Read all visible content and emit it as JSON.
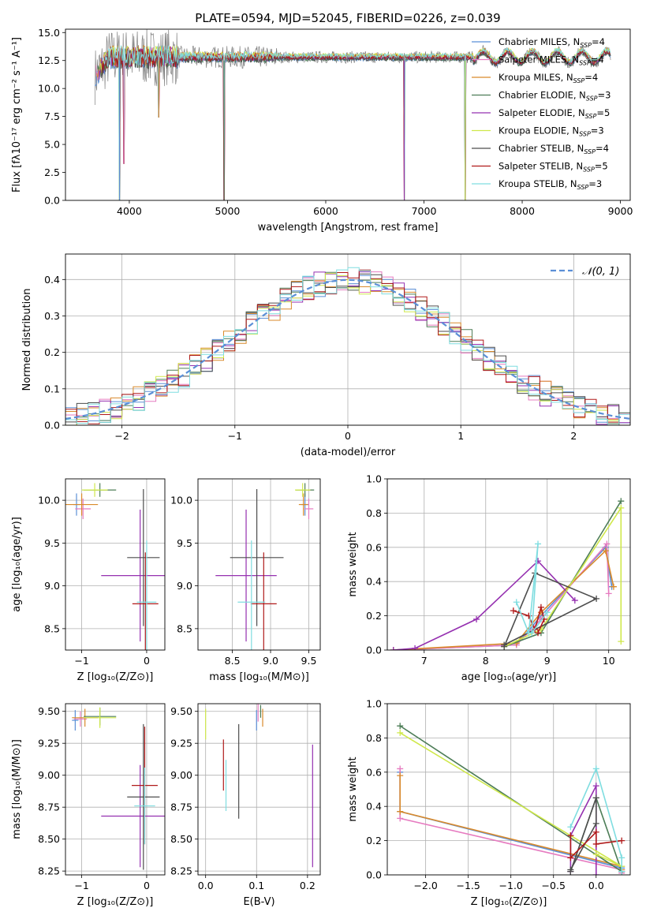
{
  "colors": {
    "chabrier_miles": "#5b8fd6",
    "salpeter_miles": "#e67bc0",
    "kroupa_miles": "#d98a2b",
    "chabrier_elodie": "#4d7d57",
    "salpeter_elodie": "#9530b0",
    "kroupa_elodie": "#cfe84a",
    "chabrier_stelib": "#4d4d4d",
    "salpeter_stelib": "#b01a1a",
    "kroupa_stelib": "#7fdde0",
    "normal_curve": "#5b8fd6",
    "spectrum_gray": "#808080"
  },
  "chart_data": [
    {
      "id": "spectrum",
      "type": "line",
      "title": "PLATE=0594, MJD=52045, FIBERID=0226, z=0.039",
      "xlabel": "wavelength [Angstrom, rest frame]",
      "ylabel": "Flux [fλ10⁻¹⁷ erg cm⁻² s⁻¹ A⁻¹]",
      "xlim": [
        3350,
        9100
      ],
      "ylim": [
        0,
        15.3
      ],
      "xticks": [
        "4000",
        "5000",
        "6000",
        "7000",
        "8000",
        "9000"
      ],
      "yticks": [
        "0.0",
        "2.5",
        "5.0",
        "7.5",
        "10.0",
        "12.5",
        "15.0"
      ],
      "grid": false,
      "legend_position": "top-right",
      "series": [
        {
          "name": "Chabrier MILES, N",
          "sub": "SSP",
          "suffix": "=4",
          "color": "#5b8fd6"
        },
        {
          "name": "Salpeter MILES, N",
          "sub": "SSP",
          "suffix": "=4",
          "color": "#e67bc0"
        },
        {
          "name": "Kroupa MILES, N",
          "sub": "SSP",
          "suffix": "=4",
          "color": "#d98a2b"
        },
        {
          "name": "Chabrier ELODIE, N",
          "sub": "SSP",
          "suffix": "=3",
          "color": "#4d7d57"
        },
        {
          "name": "Salpeter ELODIE, N",
          "sub": "SSP",
          "suffix": "=5",
          "color": "#9530b0"
        },
        {
          "name": "Kroupa ELODIE, N",
          "sub": "SSP",
          "suffix": "=3",
          "color": "#cfe84a"
        },
        {
          "name": "Chabrier STELIB, N",
          "sub": "SSP",
          "suffix": "=4",
          "color": "#4d4d4d"
        },
        {
          "name": "Salpeter STELIB, N",
          "sub": "SSP",
          "suffix": "=5",
          "color": "#b01a1a"
        },
        {
          "name": "Kroupa STELIB, N",
          "sub": "SSP",
          "suffix": "=3",
          "color": "#7fdde0"
        }
      ],
      "continuum_level": 12.8,
      "dips": [
        [
          3900,
          0
        ],
        [
          3945,
          3.3
        ],
        [
          4300,
          7.4
        ],
        [
          4965,
          0
        ],
        [
          6800,
          0
        ],
        [
          7420,
          0
        ],
        [
          8970,
          12.5
        ]
      ]
    },
    {
      "id": "residuals",
      "type": "bar",
      "xlabel": "(data-model)/error",
      "ylabel": "Normed distribution",
      "xlim": [
        -2.5,
        2.5
      ],
      "ylim": [
        0,
        0.47
      ],
      "xticks": [
        -2,
        -1,
        0,
        1,
        2
      ],
      "xtick_labels": [
        "−2",
        "−1",
        "0",
        "1",
        "2"
      ],
      "yticks": [
        "0.0",
        "0.1",
        "0.2",
        "0.3",
        "0.4"
      ],
      "grid": true,
      "legend_position": "top-right",
      "legend_label": "𝒩(0, 1)",
      "bin_width": 0.1,
      "normal": {
        "mean": 0,
        "sigma": 1
      }
    },
    {
      "id": "age-vs-z",
      "type": "scatter",
      "xlabel": "Z [log₁₀(Z/Z⊙)]",
      "ylabel": "age  [log₁₀(age/yr)]",
      "xlim": [
        -1.25,
        0.28
      ],
      "ylim": [
        8.25,
        10.25
      ],
      "xticks": [
        "−1",
        "0"
      ],
      "yticks": [
        "8.5",
        "9.0",
        "9.5",
        "10.0"
      ],
      "grid": true,
      "points": [
        {
          "x": -1.08,
          "y": 9.95,
          "xerr": 0.05,
          "yerr": 0.13,
          "color": "#5b8fd6"
        },
        {
          "x": -0.98,
          "y": 9.9,
          "xerr": 0.12,
          "yerr": 0.12,
          "color": "#e67bc0"
        },
        {
          "x": -1.0,
          "y": 9.95,
          "xerr": 0.25,
          "yerr": 0.13,
          "color": "#d98a2b"
        },
        {
          "x": -0.72,
          "y": 10.12,
          "xerr": 0.25,
          "yerr": 0.08,
          "color": "#4d7d57"
        },
        {
          "x": -0.1,
          "y": 9.12,
          "xerr": 0.6,
          "yerr": 0.77,
          "color": "#9530b0"
        },
        {
          "x": -0.8,
          "y": 10.12,
          "xerr": 0.2,
          "yerr": 0.08,
          "color": "#cfe84a"
        },
        {
          "x": -0.05,
          "y": 9.33,
          "xerr": 0.25,
          "yerr": 0.8,
          "color": "#4d4d4d"
        },
        {
          "x": -0.02,
          "y": 8.79,
          "xerr": 0.2,
          "yerr": 0.6,
          "color": "#b01a1a"
        },
        {
          "x": 0.0,
          "y": 8.81,
          "xerr": 0.15,
          "yerr": 0.72,
          "color": "#7fdde0"
        }
      ]
    },
    {
      "id": "age-vs-mass",
      "type": "scatter",
      "xlabel": "mass [log₁₀(M/M⊙)]",
      "xlim": [
        8.05,
        9.65
      ],
      "ylim": [
        8.25,
        10.25
      ],
      "xticks": [
        "8.5",
        "9.0",
        "9.5"
      ],
      "yticks": [
        "8.5",
        "9.0",
        "9.5",
        "10.0"
      ],
      "grid": true,
      "points": [
        {
          "x": 9.45,
          "y": 9.95,
          "xerr": 0.05,
          "yerr": 0.13,
          "color": "#5b8fd6"
        },
        {
          "x": 9.5,
          "y": 9.9,
          "xerr": 0.06,
          "yerr": 0.12,
          "color": "#e67bc0"
        },
        {
          "x": 9.43,
          "y": 9.95,
          "xerr": 0.06,
          "yerr": 0.13,
          "color": "#d98a2b"
        },
        {
          "x": 9.45,
          "y": 10.12,
          "xerr": 0.12,
          "yerr": 0.08,
          "color": "#4d7d57"
        },
        {
          "x": 8.68,
          "y": 9.12,
          "xerr": 0.4,
          "yerr": 0.77,
          "color": "#9530b0"
        },
        {
          "x": 9.42,
          "y": 10.12,
          "xerr": 0.1,
          "yerr": 0.08,
          "color": "#cfe84a"
        },
        {
          "x": 8.82,
          "y": 9.33,
          "xerr": 0.35,
          "yerr": 0.8,
          "color": "#4d4d4d"
        },
        {
          "x": 8.91,
          "y": 8.79,
          "xerr": 0.17,
          "yerr": 0.6,
          "color": "#b01a1a"
        },
        {
          "x": 8.75,
          "y": 8.81,
          "xerr": 0.18,
          "yerr": 0.72,
          "color": "#7fdde0"
        }
      ]
    },
    {
      "id": "mass-weight-vs-age",
      "type": "line",
      "xlabel": "age  [log₁₀(age/yr)]",
      "ylabel": "mass weight",
      "xlim": [
        6.4,
        10.35
      ],
      "ylim": [
        0,
        1.0
      ],
      "xticks": [
        "7",
        "8",
        "9",
        "10"
      ],
      "yticks": [
        "0.0",
        "0.2",
        "0.4",
        "0.6",
        "0.8",
        "1.0"
      ],
      "grid": true,
      "series": [
        {
          "color": "#5b8fd6",
          "x": [
            6.5,
            8.5,
            8.9,
            9.95,
            10.05
          ],
          "y": [
            0.0,
            0.03,
            0.2,
            0.6,
            0.37
          ]
        },
        {
          "color": "#e67bc0",
          "x": [
            6.5,
            8.5,
            8.9,
            9.97,
            10.0
          ],
          "y": [
            0.0,
            0.03,
            0.18,
            0.62,
            0.33
          ]
        },
        {
          "color": "#d98a2b",
          "x": [
            6.5,
            8.5,
            8.9,
            9.95,
            10.08
          ],
          "y": [
            0.0,
            0.04,
            0.22,
            0.58,
            0.37
          ]
        },
        {
          "color": "#4d7d57",
          "x": [
            8.3,
            8.9,
            10.2
          ],
          "y": [
            0.02,
            0.1,
            0.87
          ]
        },
        {
          "color": "#9530b0",
          "x": [
            6.5,
            6.85,
            7.85,
            8.85,
            9.45
          ],
          "y": [
            0.0,
            0.01,
            0.18,
            0.52,
            0.29
          ]
        },
        {
          "color": "#cfe84a",
          "x": [
            8.3,
            8.9,
            10.2,
            10.2
          ],
          "y": [
            0.02,
            0.12,
            0.83,
            0.05
          ]
        },
        {
          "color": "#4d4d4d",
          "x": [
            8.3,
            8.8,
            9.8,
            8.3
          ],
          "y": [
            0.02,
            0.45,
            0.3,
            0.03
          ]
        },
        {
          "color": "#b01a1a",
          "x": [
            8.45,
            8.7,
            8.8,
            8.9,
            8.95,
            8.85
          ],
          "y": [
            0.23,
            0.2,
            0.12,
            0.25,
            0.18,
            0.1
          ]
        },
        {
          "color": "#7fdde0",
          "x": [
            8.5,
            8.7,
            8.85,
            8.75,
            9.0
          ],
          "y": [
            0.28,
            0.1,
            0.62,
            0.1,
            0.22
          ]
        }
      ]
    },
    {
      "id": "mass-vs-z",
      "type": "scatter",
      "xlabel": "Z [log₁₀(Z/Z⊙)]",
      "ylabel": "mass [log₁₀(M/M⊙)]",
      "xlim": [
        -1.25,
        0.28
      ],
      "ylim": [
        8.22,
        9.56
      ],
      "xticks": [
        "−1",
        "0"
      ],
      "yticks": [
        "8.25",
        "8.50",
        "8.75",
        "9.00",
        "9.25",
        "9.50"
      ],
      "grid": true,
      "points": [
        {
          "x": -1.1,
          "y": 9.43,
          "xerr": 0.05,
          "yerr": 0.08,
          "color": "#5b8fd6"
        },
        {
          "x": -1.02,
          "y": 9.44,
          "xerr": 0.1,
          "yerr": 0.06,
          "color": "#e67bc0"
        },
        {
          "x": -0.95,
          "y": 9.45,
          "xerr": 0.2,
          "yerr": 0.07,
          "color": "#d98a2b"
        },
        {
          "x": -0.72,
          "y": 9.46,
          "xerr": 0.25,
          "yerr": 0.07,
          "color": "#4d7d57"
        },
        {
          "x": -0.1,
          "y": 8.68,
          "xerr": 0.6,
          "yerr": 0.4,
          "color": "#9530b0"
        },
        {
          "x": -0.72,
          "y": 9.45,
          "xerr": 0.25,
          "yerr": 0.08,
          "color": "#cfe84a"
        },
        {
          "x": -0.05,
          "y": 8.83,
          "xerr": 0.25,
          "yerr": 0.57,
          "color": "#4d4d4d"
        },
        {
          "x": -0.03,
          "y": 8.92,
          "xerr": 0.2,
          "yerr": 0.46,
          "color": "#b01a1a"
        },
        {
          "x": -0.03,
          "y": 8.76,
          "xerr": 0.16,
          "yerr": 0.3,
          "color": "#7fdde0"
        }
      ]
    },
    {
      "id": "mass-vs-ebv",
      "type": "scatter",
      "xlabel": "E(B-V)",
      "xlim": [
        -0.015,
        0.225
      ],
      "ylim": [
        8.22,
        9.56
      ],
      "xticks": [
        "0.0",
        "0.1",
        "0.2"
      ],
      "yticks": [
        "8.25",
        "8.50",
        "8.75",
        "9.00",
        "9.25",
        "9.50"
      ],
      "grid": true,
      "points": [
        {
          "x": 0.1,
          "y": 9.43,
          "xerr": 0,
          "yerr": 0.08,
          "color": "#5b8fd6"
        },
        {
          "x": 0.103,
          "y": 9.52,
          "xerr": 0,
          "yerr": 0.1,
          "color": "#e67bc0"
        },
        {
          "x": 0.112,
          "y": 9.45,
          "xerr": 0,
          "yerr": 0.07,
          "color": "#d98a2b"
        },
        {
          "x": 0.108,
          "y": 9.5,
          "xerr": 0,
          "yerr": 0.05,
          "color": "#4d7d57"
        },
        {
          "x": 0.21,
          "y": 8.76,
          "xerr": 0,
          "yerr": 0.48,
          "color": "#9530b0"
        },
        {
          "x": 0.0,
          "y": 9.4,
          "xerr": 0,
          "yerr": 0.12,
          "color": "#cfe84a"
        },
        {
          "x": 0.065,
          "y": 9.03,
          "xerr": 0,
          "yerr": 0.37,
          "color": "#4d4d4d"
        },
        {
          "x": 0.035,
          "y": 9.08,
          "xerr": 0,
          "yerr": 0.2,
          "color": "#b01a1a"
        },
        {
          "x": 0.04,
          "y": 8.92,
          "xerr": 0,
          "yerr": 0.2,
          "color": "#7fdde0"
        }
      ]
    },
    {
      "id": "mass-weight-vs-z",
      "type": "line",
      "xlabel": "Z [log₁₀(Z/Z⊙)]",
      "ylabel": "mass weight",
      "xlim": [
        -2.45,
        0.4
      ],
      "ylim": [
        0,
        1.0
      ],
      "xticks": [
        "−2.0",
        "−1.5",
        "−1.0",
        "−0.5",
        "0.0"
      ],
      "xtick_values": [
        -2.0,
        -1.5,
        -1.0,
        -0.5,
        0.0
      ],
      "yticks": [
        "0.0",
        "0.2",
        "0.4",
        "0.6",
        "0.8",
        "1.0"
      ],
      "grid": true,
      "series": [
        {
          "color": "#5b8fd6",
          "x": [
            -2.3,
            -2.3,
            0.3,
            0.3
          ],
          "y": [
            0.6,
            0.37,
            0.04,
            0.02
          ]
        },
        {
          "color": "#e67bc0",
          "x": [
            -2.3,
            -2.3,
            0.3,
            0.3
          ],
          "y": [
            0.62,
            0.33,
            0.03,
            0.01
          ]
        },
        {
          "color": "#d98a2b",
          "x": [
            -2.3,
            -2.3,
            0.3,
            0.3
          ],
          "y": [
            0.58,
            0.37,
            0.05,
            0.03
          ]
        },
        {
          "color": "#4d7d57",
          "x": [
            -2.3,
            0.3,
            0.0,
            -0.3
          ],
          "y": [
            0.87,
            0.02,
            0.45,
            0.02
          ]
        },
        {
          "color": "#9530b0",
          "x": [
            -0.3,
            -0.3,
            0.0,
            0.0
          ],
          "y": [
            0.02,
            0.23,
            0.52,
            0.0
          ]
        },
        {
          "color": "#cfe84a",
          "x": [
            -2.3,
            0.3,
            0.0
          ],
          "y": [
            0.83,
            0.05,
            0.12
          ]
        },
        {
          "color": "#4d4d4d",
          "x": [
            -0.3,
            0.0,
            0.0,
            -0.3
          ],
          "y": [
            0.02,
            0.45,
            0.3,
            0.03
          ]
        },
        {
          "color": "#b01a1a",
          "x": [
            -0.3,
            -0.3,
            0.0,
            0.0,
            0.3
          ],
          "y": [
            0.23,
            0.1,
            0.25,
            0.18,
            0.2
          ]
        },
        {
          "color": "#7fdde0",
          "x": [
            -0.3,
            0.0,
            0.3,
            0.3
          ],
          "y": [
            0.28,
            0.62,
            0.1,
            0.02
          ]
        }
      ]
    }
  ]
}
